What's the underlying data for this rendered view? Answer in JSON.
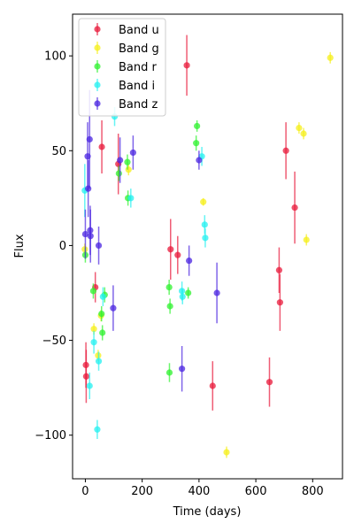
{
  "chart_data": {
    "type": "scatter",
    "xlabel": "Time (days)",
    "ylabel": "Flux",
    "xlim": [
      -45,
      905
    ],
    "ylim": [
      -123,
      122
    ],
    "xticks": [
      0,
      200,
      400,
      600,
      800
    ],
    "yticks": [
      -100,
      -50,
      0,
      50,
      100
    ],
    "grid": false,
    "legend_position": "top-left",
    "error_bars": true,
    "series": [
      {
        "name": "Band u",
        "color": "#e8183a",
        "points": [
          {
            "x": 2,
            "y": -63,
            "err": 12
          },
          {
            "x": 3,
            "y": -69,
            "err": 14
          },
          {
            "x": 35,
            "y": -22,
            "err": 8
          },
          {
            "x": 58,
            "y": 52,
            "err": 14
          },
          {
            "x": 116,
            "y": 43,
            "err": 16
          },
          {
            "x": 300,
            "y": -2,
            "err": 16
          },
          {
            "x": 325,
            "y": -5,
            "err": 10
          },
          {
            "x": 357,
            "y": 95,
            "err": 16
          },
          {
            "x": 448,
            "y": -74,
            "err": 13
          },
          {
            "x": 648,
            "y": -72,
            "err": 13
          },
          {
            "x": 682,
            "y": -13,
            "err": 12
          },
          {
            "x": 685,
            "y": -30,
            "err": 15
          },
          {
            "x": 706,
            "y": 50,
            "err": 15
          },
          {
            "x": 737,
            "y": 20,
            "err": 19
          }
        ]
      },
      {
        "name": "Band g",
        "color": "#f5ef18",
        "points": [
          {
            "x": -2,
            "y": -2,
            "err": 3
          },
          {
            "x": 30,
            "y": -44,
            "err": 3
          },
          {
            "x": 45,
            "y": -58,
            "err": 3
          },
          {
            "x": 55,
            "y": -37,
            "err": 3
          },
          {
            "x": 152,
            "y": 40,
            "err": 3
          },
          {
            "x": 415,
            "y": 23,
            "err": 2
          },
          {
            "x": 497,
            "y": -109,
            "err": 3
          },
          {
            "x": 752,
            "y": 62,
            "err": 3
          },
          {
            "x": 768,
            "y": 59,
            "err": 3
          },
          {
            "x": 778,
            "y": 3,
            "err": 3
          },
          {
            "x": 862,
            "y": 99,
            "err": 3
          }
        ]
      },
      {
        "name": "Band r",
        "color": "#2ef22e",
        "points": [
          {
            "x": 0,
            "y": -5,
            "err": 4
          },
          {
            "x": 28,
            "y": -24,
            "err": 4
          },
          {
            "x": 57,
            "y": -36,
            "err": 4
          },
          {
            "x": 60,
            "y": -46,
            "err": 4
          },
          {
            "x": 68,
            "y": -26,
            "err": 4
          },
          {
            "x": 118,
            "y": 38,
            "err": 4
          },
          {
            "x": 148,
            "y": 44,
            "err": 4
          },
          {
            "x": 150,
            "y": 25,
            "err": 4
          },
          {
            "x": 295,
            "y": -22,
            "err": 4
          },
          {
            "x": 298,
            "y": -32,
            "err": 4
          },
          {
            "x": 296,
            "y": -67,
            "err": 5
          },
          {
            "x": 362,
            "y": -25,
            "err": 3
          },
          {
            "x": 390,
            "y": 54,
            "err": 4
          },
          {
            "x": 393,
            "y": 63,
            "err": 3
          }
        ]
      },
      {
        "name": "Band i",
        "color": "#23f0f0",
        "points": [
          {
            "x": -2,
            "y": 29,
            "err": 14
          },
          {
            "x": 15,
            "y": -74,
            "err": 7
          },
          {
            "x": 30,
            "y": -51,
            "err": 6
          },
          {
            "x": 42,
            "y": -97,
            "err": 5
          },
          {
            "x": 47,
            "y": -61,
            "err": 5
          },
          {
            "x": 62,
            "y": -27,
            "err": 5
          },
          {
            "x": 103,
            "y": 68,
            "err": 5
          },
          {
            "x": 160,
            "y": 25,
            "err": 5
          },
          {
            "x": 340,
            "y": -24,
            "err": 5
          },
          {
            "x": 342,
            "y": -27,
            "err": 4
          },
          {
            "x": 410,
            "y": 47,
            "err": 5
          },
          {
            "x": 420,
            "y": 11,
            "err": 5
          },
          {
            "x": 422,
            "y": 4,
            "err": 5
          }
        ]
      },
      {
        "name": "Band z",
        "color": "#4a24e0",
        "points": [
          {
            "x": 0,
            "y": 6,
            "err": 13
          },
          {
            "x": 8,
            "y": 47,
            "err": 18
          },
          {
            "x": 10,
            "y": 30,
            "err": 15
          },
          {
            "x": 15,
            "y": 56,
            "err": 26
          },
          {
            "x": 17,
            "y": 8,
            "err": 13
          },
          {
            "x": 18,
            "y": 5,
            "err": 14
          },
          {
            "x": 47,
            "y": 0,
            "err": 10
          },
          {
            "x": 98,
            "y": -33,
            "err": 12
          },
          {
            "x": 122,
            "y": 45,
            "err": 12
          },
          {
            "x": 168,
            "y": 49,
            "err": 9
          },
          {
            "x": 340,
            "y": -65,
            "err": 12
          },
          {
            "x": 365,
            "y": -8,
            "err": 8
          },
          {
            "x": 400,
            "y": 45,
            "err": 5
          },
          {
            "x": 463,
            "y": -25,
            "err": 16
          }
        ]
      }
    ]
  }
}
